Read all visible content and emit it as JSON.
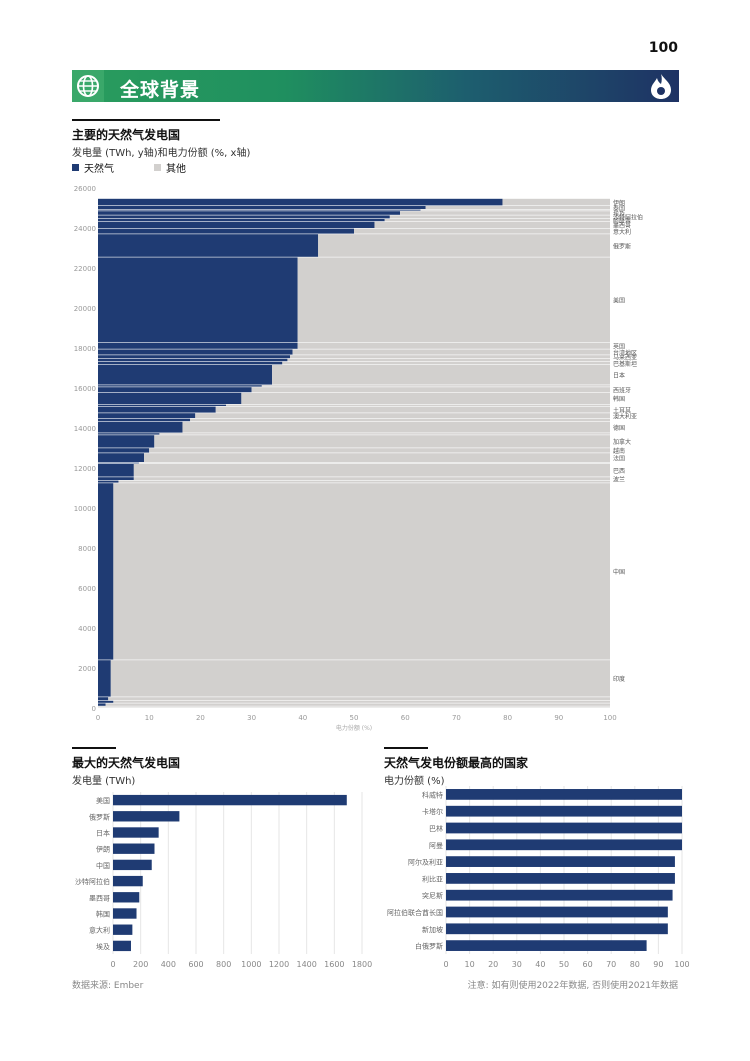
{
  "page": {
    "number": "100",
    "section_title": "全球背景",
    "source": "数据来源: Ember",
    "note": "注意: 如有则使用2022年数据, 否则使用2021年数据"
  },
  "colors": {
    "gas": "#1f3b73",
    "other": "#d2d0ce",
    "brand_green": "#2a9d5e",
    "brand_navy": "#1e3264"
  },
  "icons": {
    "banner": "globe-icon",
    "logo": "flame-logo-icon"
  },
  "main_chart": {
    "title": "主要的天然气发电国",
    "subtitle": "发电量 (TWh, y轴)和电力份额 (%, x轴)",
    "legend": {
      "gas": "天然气",
      "other": "其他"
    }
  },
  "bottom_left": {
    "title": "最大的天然气发电国",
    "subtitle": "发电量 (TWh)"
  },
  "bottom_right": {
    "title": "天然气发电份额最高的国家",
    "subtitle": "电力份额 (%)"
  },
  "chart_data": [
    {
      "type": "bar",
      "chart": "marimekko",
      "title": "主要的天然气发电国",
      "subtitle": "发电量 (TWh, y轴)和电力份额 (%, x轴)",
      "xlabel": "电力份额 (%)",
      "ylabel": "",
      "xlim": [
        0,
        100
      ],
      "ylim": [
        0,
        26000
      ],
      "x_ticks": [
        0,
        10,
        20,
        30,
        40,
        50,
        60,
        70,
        80,
        90,
        100
      ],
      "y_ticks": [
        0,
        2000,
        4000,
        6000,
        8000,
        10000,
        12000,
        14000,
        16000,
        18000,
        20000,
        22000,
        24000,
        26000
      ],
      "series_names": [
        "天然气",
        "其他"
      ],
      "countries": [
        {
          "label": "",
          "total": 80,
          "share": 0
        },
        {
          "label": "",
          "total": 150,
          "share": 1.5
        },
        {
          "label": "",
          "total": 130,
          "share": 3
        },
        {
          "label": "",
          "total": 180,
          "share": 2
        },
        {
          "label": "印度",
          "total": 1850,
          "share": 2.5
        },
        {
          "label": "中国",
          "total": 8850,
          "share": 3
        },
        {
          "label": "",
          "total": 130,
          "share": 4
        },
        {
          "label": "波兰",
          "total": 170,
          "share": 7
        },
        {
          "label": "巴西",
          "total": 660,
          "share": 7
        },
        {
          "label": "",
          "total": 70,
          "share": 8
        },
        {
          "label": "法国",
          "total": 470,
          "share": 9
        },
        {
          "label": "越南",
          "total": 250,
          "share": 10
        },
        {
          "label": "加拿大",
          "total": 650,
          "share": 11
        },
        {
          "label": "",
          "total": 100,
          "share": 12
        },
        {
          "label": "德国",
          "total": 570,
          "share": 16.5
        },
        {
          "label": "",
          "total": 160,
          "share": 18
        },
        {
          "label": "澳大利亚",
          "total": 270,
          "share": 19
        },
        {
          "label": "土耳其",
          "total": 330,
          "share": 23
        },
        {
          "label": "",
          "total": 100,
          "share": 25
        },
        {
          "label": "韩国",
          "total": 590,
          "share": 28
        },
        {
          "label": "西班牙",
          "total": 280,
          "share": 30
        },
        {
          "label": "",
          "total": 100,
          "share": 32
        },
        {
          "label": "日本",
          "total": 1010,
          "share": 34
        },
        {
          "label": "巴基斯坦",
          "total": 160,
          "share": 36
        },
        {
          "label": "",
          "total": 150,
          "share": 37
        },
        {
          "label": "马来西亚",
          "total": 180,
          "share": 37.5
        },
        {
          "label": "台湾地区",
          "total": 290,
          "share": 38
        },
        {
          "label": "英国",
          "total": 320,
          "share": 39
        },
        {
          "label": "美国",
          "total": 4280,
          "share": 39
        },
        {
          "label": "俄罗斯",
          "total": 1160,
          "share": 43
        },
        {
          "label": "意大利",
          "total": 280,
          "share": 50
        },
        {
          "label": "墨西哥",
          "total": 340,
          "share": 54
        },
        {
          "label": "阿联酋",
          "total": 140,
          "share": 56
        },
        {
          "label": "沙特阿拉伯",
          "total": 180,
          "share": 57
        },
        {
          "label": "埃及",
          "total": 210,
          "share": 59
        },
        {
          "label": "",
          "total": 80,
          "share": 63
        },
        {
          "label": "泰国",
          "total": 180,
          "share": 64
        },
        {
          "label": "伊朗",
          "total": 360,
          "share": 79
        }
      ]
    },
    {
      "type": "bar",
      "orientation": "horizontal",
      "title": "最大的天然气发电国",
      "subtitle": "发电量 (TWh)",
      "categories": [
        "美国",
        "俄罗斯",
        "日本",
        "伊朗",
        "中国",
        "沙特阿拉伯",
        "墨西哥",
        "韩国",
        "意大利",
        "埃及"
      ],
      "values": [
        1690,
        480,
        330,
        300,
        280,
        215,
        190,
        170,
        140,
        130
      ],
      "xlim": [
        0,
        1800
      ],
      "x_ticks": [
        0,
        200,
        400,
        600,
        800,
        1000,
        1200,
        1400,
        1600,
        1800
      ]
    },
    {
      "type": "bar",
      "orientation": "horizontal",
      "title": "天然气发电份额最高的国家",
      "subtitle": "电力份额 (%)",
      "categories": [
        "科威特",
        "卡塔尔",
        "巴林",
        "阿曼",
        "阿尔及利亚",
        "利比亚",
        "突尼斯",
        "阿拉伯联合酋长国",
        "新加坡",
        "白俄罗斯"
      ],
      "values": [
        100,
        100,
        100,
        100,
        97,
        97,
        96,
        94,
        94,
        85
      ],
      "xlim": [
        0,
        100
      ],
      "x_ticks": [
        0,
        10,
        20,
        30,
        40,
        50,
        60,
        70,
        80,
        90,
        100
      ]
    }
  ]
}
